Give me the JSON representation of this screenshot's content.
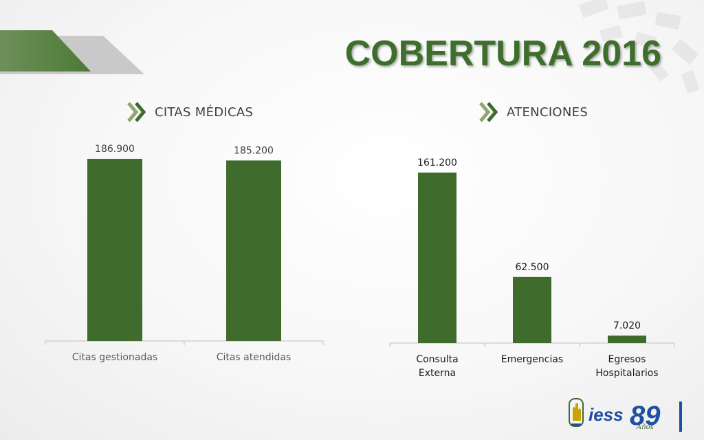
{
  "header": {
    "title": "COBERTURA 2016"
  },
  "colors": {
    "bar": "#3f6b2d",
    "title": "#3d6e2c",
    "axis": "#bfbfbf",
    "text": "#3e3e3e",
    "accent_light": "#8aa870"
  },
  "chart_data": [
    {
      "type": "bar",
      "title": "CITAS MÉDICAS",
      "categories": [
        "Citas gestionadas",
        "Citas atendidas"
      ],
      "values": [
        186900,
        185200
      ],
      "value_labels": [
        "186.900",
        "185.200"
      ],
      "ylim": [
        0,
        200000
      ],
      "grid": false,
      "legend": "none"
    },
    {
      "type": "bar",
      "title": "ATENCIONES",
      "categories": [
        "Consulta Externa",
        "Emergencias",
        "Egresos Hospitalarios"
      ],
      "values": [
        161200,
        62500,
        7020
      ],
      "value_labels": [
        "161.200",
        "62.500",
        "7.020"
      ],
      "ylim": [
        0,
        200000
      ],
      "grid": false,
      "legend": "none"
    }
  ],
  "logo": {
    "brand": "iess",
    "years": "89",
    "years_word": "Años"
  }
}
